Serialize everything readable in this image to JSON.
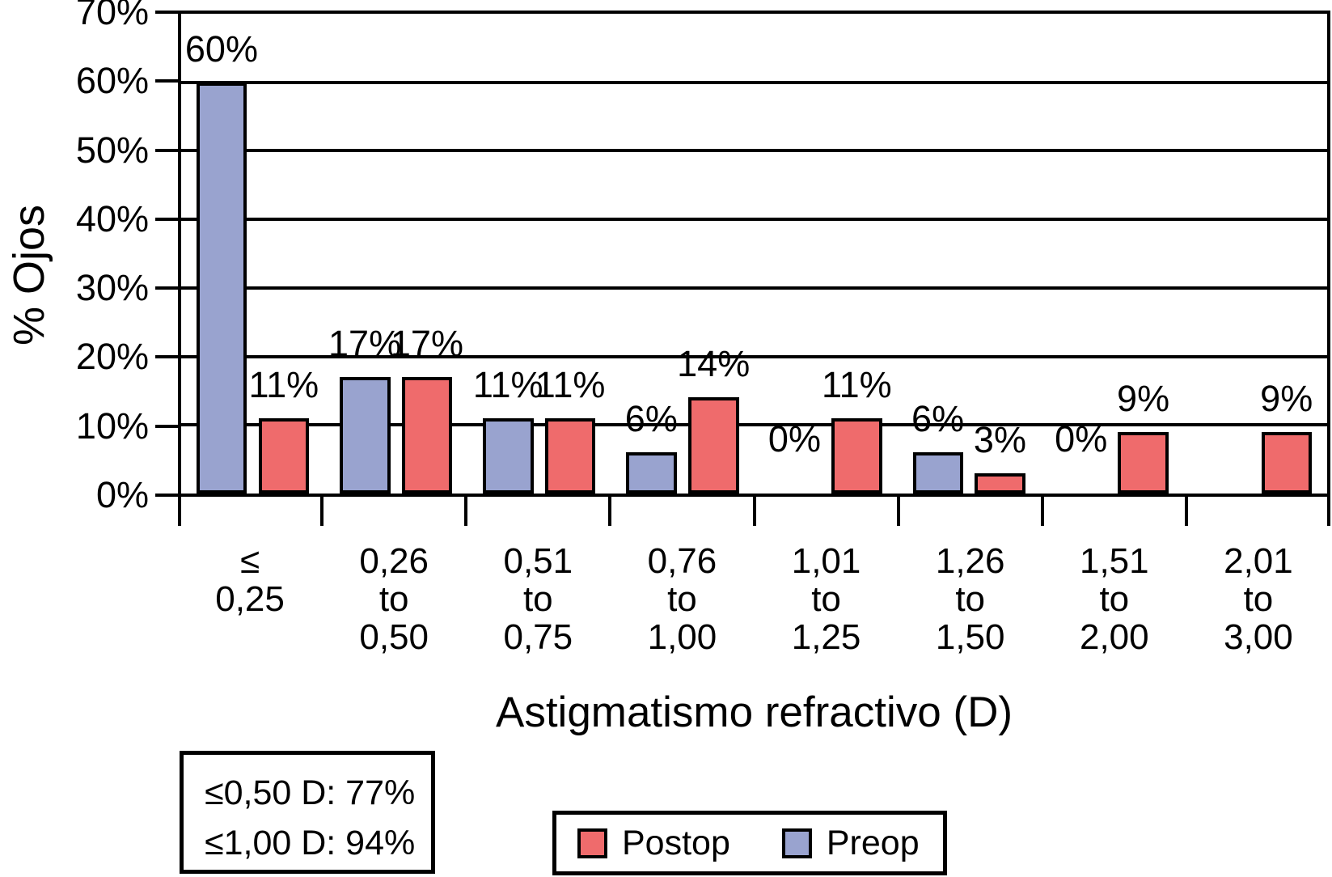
{
  "chart_data": {
    "type": "bar",
    "title": "",
    "xlabel": "Astigmatismo refractivo (D)",
    "ylabel": "% Ojos",
    "ylim": [
      0,
      70
    ],
    "grid": true,
    "ytick_labels": [
      "70%",
      "60%",
      "50%",
      "40%",
      "30%",
      "20%",
      "10%",
      "0%"
    ],
    "categories": [
      [
        "≤",
        "0,25"
      ],
      [
        "0,26",
        "to",
        "0,50"
      ],
      [
        "0,51",
        "to",
        "0,75"
      ],
      [
        "0,76",
        "to",
        "1,00"
      ],
      [
        "1,01",
        "to",
        "1,25"
      ],
      [
        "1,26",
        "to",
        "1,50"
      ],
      [
        "1,51",
        "to",
        "2,00"
      ],
      [
        "2,01",
        "to",
        "3,00"
      ]
    ],
    "series": [
      {
        "name": "Preop",
        "color": "#99A3CF",
        "values": [
          60,
          17,
          11,
          6,
          0,
          6,
          0,
          0
        ],
        "labels": [
          "60%",
          "17%",
          "11%",
          "6%",
          "0%",
          "6%",
          "0%",
          ""
        ]
      },
      {
        "name": "Postop",
        "color": "#EF6B6C",
        "values": [
          11,
          17,
          11,
          14,
          11,
          3,
          9,
          9
        ],
        "labels": [
          "11%",
          "17%",
          "11%",
          "14%",
          "11%",
          "3%",
          "9%",
          "9%"
        ]
      }
    ],
    "legend": {
      "position": "bottom",
      "items": [
        {
          "label": "Postop",
          "color": "#EF6B6C"
        },
        {
          "label": "Preop",
          "color": "#99A3CF"
        }
      ]
    },
    "annotation_box": {
      "lines": [
        "≤0,50 D: 77%",
        "≤1,00 D: 94%"
      ]
    }
  }
}
